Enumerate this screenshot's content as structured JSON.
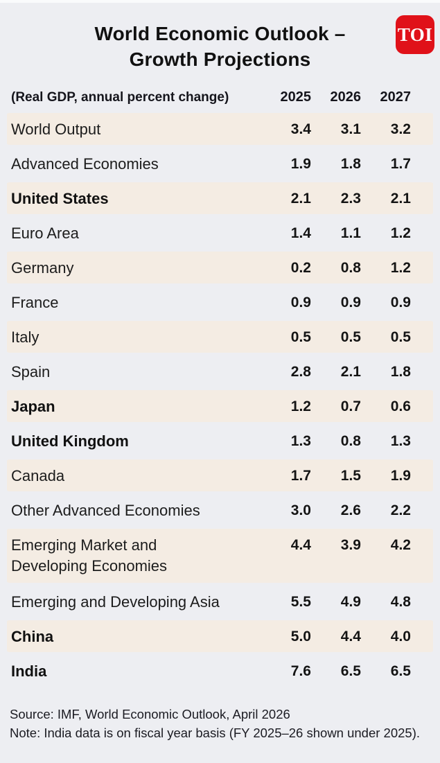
{
  "chart_data": {
    "type": "table",
    "title": "World Economic Outlook – Growth Projections",
    "subtitle": "(Real GDP, annual percent change)",
    "columns": [
      "2025",
      "2026",
      "2027"
    ],
    "rows": [
      {
        "label": "World Output",
        "bold": false,
        "values": [
          "3.4",
          "3.1",
          "3.2"
        ]
      },
      {
        "label": "Advanced Economies",
        "bold": false,
        "values": [
          "1.9",
          "1.8",
          "1.7"
        ]
      },
      {
        "label": "United States",
        "bold": true,
        "values": [
          "2.1",
          "2.3",
          "2.1"
        ]
      },
      {
        "label": "Euro Area",
        "bold": false,
        "values": [
          "1.4",
          "1.1",
          "1.2"
        ]
      },
      {
        "label": "Germany",
        "bold": false,
        "values": [
          "0.2",
          "0.8",
          "1.2"
        ]
      },
      {
        "label": "France",
        "bold": false,
        "values": [
          "0.9",
          "0.9",
          "0.9"
        ]
      },
      {
        "label": "Italy",
        "bold": false,
        "values": [
          "0.5",
          "0.5",
          "0.5"
        ]
      },
      {
        "label": "Spain",
        "bold": false,
        "values": [
          "2.8",
          "2.1",
          "1.8"
        ]
      },
      {
        "label": "Japan",
        "bold": true,
        "values": [
          "1.2",
          "0.7",
          "0.6"
        ]
      },
      {
        "label": "United Kingdom",
        "bold": true,
        "values": [
          "1.3",
          "0.8",
          "1.3"
        ]
      },
      {
        "label": "Canada",
        "bold": false,
        "values": [
          "1.7",
          "1.5",
          "1.9"
        ]
      },
      {
        "label": "Other Advanced Economies",
        "bold": false,
        "values": [
          "3.0",
          "2.6",
          "2.2"
        ]
      },
      {
        "label": "Emerging Market and\nDeveloping Economies",
        "bold": false,
        "values": [
          "4.4",
          "3.9",
          "4.2"
        ],
        "wrap": true
      },
      {
        "label": "Emerging and Developing Asia",
        "bold": false,
        "values": [
          "5.5",
          "4.9",
          "4.8"
        ]
      },
      {
        "label": "China",
        "bold": true,
        "values": [
          "5.0",
          "4.4",
          "4.0"
        ]
      },
      {
        "label": "India",
        "bold": true,
        "values": [
          "7.6",
          "6.5",
          "6.5"
        ]
      }
    ],
    "source": "Source: IMF, World Economic Outlook, April 2026",
    "note": "Note: India data is on fiscal year basis (FY 2025–26 shown under 2025).",
    "layout_hints": {
      "shaded_row_indices": "even",
      "values_bold": true,
      "legend": "none",
      "grid": "off"
    }
  },
  "header": {
    "logo_text": "TOI",
    "title_line1": "World Economic Outlook –",
    "title_line2": "Growth Projections"
  },
  "table": {
    "caption": "(Real GDP, annual percent change)",
    "years": [
      "2025",
      "2026",
      "2027"
    ]
  },
  "footer": {
    "source": "Source: IMF, World Economic Outlook, April 2026",
    "note": "Note: India data is on fiscal year basis (FY 2025–26 shown under 2025)."
  },
  "colors": {
    "page_bg": "#edeef2",
    "row_shade": "#f4ece3",
    "accent_red": "#e01119",
    "text": "#1c1c1c"
  }
}
